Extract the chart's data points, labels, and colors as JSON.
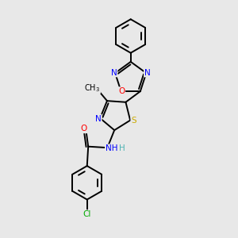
{
  "background_color": "#e8e8e8",
  "line_color": "#000000",
  "figsize": [
    3.0,
    3.0
  ],
  "dpi": 100,
  "atom_colors": {
    "N": "#0000ff",
    "O": "#ff0000",
    "S": "#ccaa00",
    "Cl": "#00aa00",
    "C": "#000000"
  },
  "lw": 1.4
}
